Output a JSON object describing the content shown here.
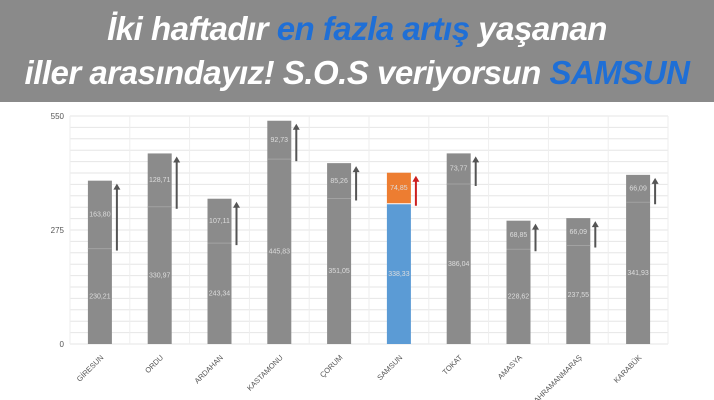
{
  "headline": {
    "line1": {
      "p1": "İki haftadır ",
      "p2": "en fazla artış",
      "p3": " yaşanan"
    },
    "line2": {
      "p1": "iller arasındayız! S.O.S veriyorsun ",
      "p2": "SAMSUN"
    }
  },
  "colors": {
    "bar": "#8b8b8b",
    "highlight_base": "#5b9bd5",
    "highlight_top": "#ed7d31",
    "arrow": "#555555",
    "highlight_arrow": "#cc1f1f",
    "headline_bg": "#8a8a8a",
    "headline_accent": "#1f6fd6"
  },
  "chart_data": {
    "type": "bar",
    "stacked": true,
    "categories": [
      "GİRESUN",
      "ORDU",
      "ARDAHAN",
      "KASTAMONU",
      "ÇORUM",
      "SAMSUN",
      "TOKAT",
      "AMASYA",
      "KAHRAMANMARAŞ",
      "KARABÜK"
    ],
    "series": [
      {
        "values": [
          230.21,
          330.97,
          243.34,
          445.83,
          351.05,
          338.33,
          386.04,
          228.62,
          237.55,
          341.93
        ]
      },
      {
        "values": [
          163.8,
          128.71,
          107.11,
          92.73,
          85.26,
          74.85,
          73.77,
          68.85,
          66.09,
          66.09
        ]
      }
    ],
    "value_labels": [
      [
        "230,21",
        "330,97",
        "243,34",
        "445,83",
        "351,05",
        "338,33",
        "386,04",
        "228,62",
        "237,55",
        "341,93"
      ],
      [
        "163,80",
        "128,71",
        "107,11",
        "92,73",
        "85,26",
        "74,85",
        "73,77",
        "68,85",
        "66,09",
        "66,09"
      ]
    ],
    "highlight": "SAMSUN",
    "y_ticks": [
      "0",
      "275",
      "550"
    ],
    "ylim": [
      0,
      550
    ],
    "grid": true,
    "arrows": "up"
  }
}
